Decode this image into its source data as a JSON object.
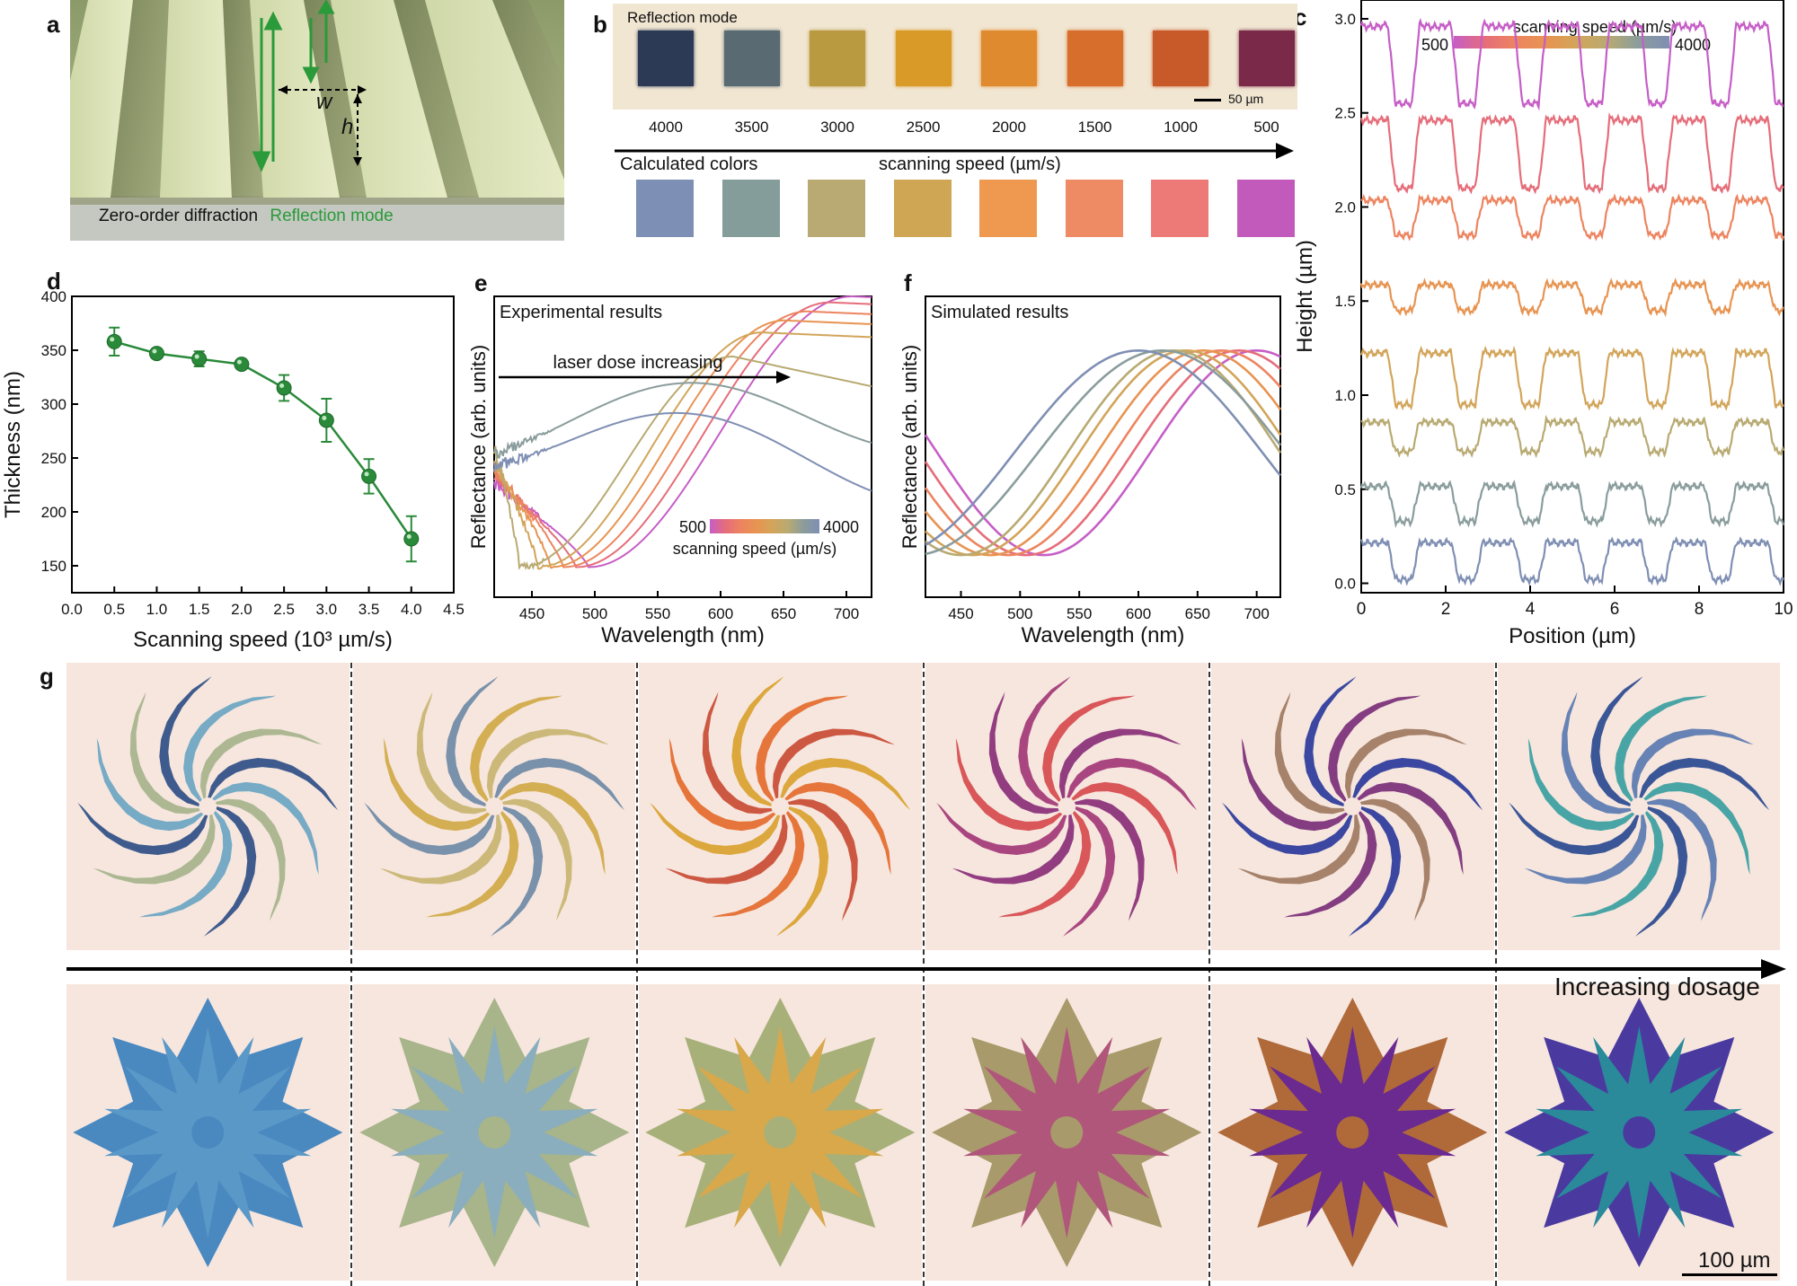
{
  "panels": {
    "a": "a",
    "b": "b",
    "c": "c",
    "d": "d",
    "e": "e",
    "f": "f",
    "g": "g"
  },
  "panel_a": {
    "w_label": "w",
    "h_label": "h",
    "caption_black": "Zero-order diffraction",
    "caption_green": "Reflection mode"
  },
  "panel_b": {
    "mode_label": "Reflection mode",
    "scale_bar": "50 µm",
    "speeds": [
      "4000",
      "3500",
      "3000",
      "2500",
      "2000",
      "1500",
      "1000",
      "500"
    ],
    "measured_colors": [
      "#2c3a55",
      "#5a6a72",
      "#b99a40",
      "#d99a28",
      "#e08a30",
      "#d86e2c",
      "#c85a2a",
      "#7a2a48"
    ],
    "calc_label": "Calculated colors",
    "axis_label": "scanning speed (µm/s)",
    "calculated_colors": [
      "#7e8fb5",
      "#849c9a",
      "#b8aa72",
      "#cfa654",
      "#ee9850",
      "#ee8a64",
      "#ee7a78",
      "#c15aba"
    ]
  },
  "chart_data": [
    {
      "id": "c",
      "type": "line",
      "xlabel": "Position (µm)",
      "ylabel": "Height (µm)",
      "xlim": [
        0,
        10
      ],
      "ylim": [
        -0.05,
        3.1
      ],
      "xticks": [
        "0",
        "2",
        "4",
        "6",
        "8",
        "10"
      ],
      "yticks": [
        "0.0",
        "0.5",
        "1.0",
        "1.5",
        "2.0",
        "2.5",
        "3.0"
      ],
      "colorbar": {
        "title": "scanning speed (µm/s)",
        "min_label": "500",
        "max_label": "4000"
      },
      "period": 1.5,
      "series": [
        {
          "color": "#c65ec6",
          "base": 2.55,
          "top": 2.97
        },
        {
          "color": "#e56d7a",
          "base": 2.1,
          "top": 2.47
        },
        {
          "color": "#ed8460",
          "base": 1.85,
          "top": 2.04
        },
        {
          "color": "#e79452",
          "base": 1.45,
          "top": 1.59
        },
        {
          "color": "#d2a55a",
          "base": 0.95,
          "top": 1.23
        },
        {
          "color": "#b8aa72",
          "base": 0.7,
          "top": 0.86
        },
        {
          "color": "#8a9c9c",
          "base": 0.33,
          "top": 0.52
        },
        {
          "color": "#7f8fb3",
          "base": 0.02,
          "top": 0.22
        }
      ]
    },
    {
      "id": "d",
      "type": "scatter",
      "xlabel": "Scanning speed (10³ µm/s)",
      "ylabel": "Thickness (nm)",
      "xlim": [
        0,
        4.5
      ],
      "ylim": [
        125,
        400
      ],
      "xticks": [
        "0.0",
        "0.5",
        "1.0",
        "1.5",
        "2.0",
        "2.5",
        "3.0",
        "3.5",
        "4.0",
        "4.5"
      ],
      "yticks": [
        "150",
        "200",
        "250",
        "300",
        "350",
        "400"
      ],
      "x": [
        0.5,
        1.0,
        1.5,
        2.0,
        2.5,
        3.0,
        3.5,
        4.0
      ],
      "y": [
        358,
        347,
        342,
        337,
        315,
        285,
        233,
        175
      ],
      "err": [
        13,
        3,
        7,
        4,
        12,
        20,
        16,
        21
      ],
      "color": "#2a8a3a"
    },
    {
      "id": "e",
      "type": "line",
      "title": "Experimental results",
      "annotation": "laser dose increasing",
      "xlabel": "Wavelength (nm)",
      "ylabel": "Reflectance (arb. units)",
      "xlim": [
        420,
        720
      ],
      "xticks": [
        "450",
        "500",
        "550",
        "600",
        "650",
        "700"
      ],
      "colorbar": {
        "title": "scanning speed (µm/s)",
        "min_label": "500",
        "max_label": "4000"
      },
      "series": [
        {
          "color": "#c65ec6",
          "min": 495,
          "startY": 0.38,
          "endY": 1.0
        },
        {
          "color": "#e56d7a",
          "min": 485,
          "startY": 0.4,
          "endY": 0.98
        },
        {
          "color": "#ed8460",
          "min": 475,
          "startY": 0.42,
          "endY": 0.95
        },
        {
          "color": "#e79452",
          "min": 465,
          "startY": 0.44,
          "endY": 0.92
        },
        {
          "color": "#d2a55a",
          "min": 455,
          "startY": 0.46,
          "endY": 0.88
        },
        {
          "color": "#b8aa72",
          "min": 440,
          "startY": 0.5,
          "endY": 0.8
        },
        {
          "color": "#8a9c9c",
          "min": 420,
          "startY": 0.58,
          "endY": 0.6
        },
        {
          "color": "#7f8fb3",
          "min": 420,
          "startY": 0.54,
          "endY": 0.4
        }
      ]
    },
    {
      "id": "f",
      "type": "line",
      "title": "Simulated results",
      "xlabel": "Wavelength (nm)",
      "ylabel": "Reflectance (arb. units)",
      "xlim": [
        420,
        720
      ],
      "xticks": [
        "450",
        "500",
        "550",
        "600",
        "650",
        "700"
      ],
      "series": [
        {
          "color": "#c65ec6",
          "min": 520
        },
        {
          "color": "#e56d7a",
          "min": 505
        },
        {
          "color": "#ed8460",
          "min": 490
        },
        {
          "color": "#e79452",
          "min": 475
        },
        {
          "color": "#d2a55a",
          "min": 460
        },
        {
          "color": "#b8aa72",
          "min": 450
        },
        {
          "color": "#8a9c9c",
          "min": 410
        },
        {
          "color": "#7f8fb3",
          "min": 390
        }
      ]
    }
  ],
  "panel_g": {
    "arrow_label": "Increasing dosage",
    "scale_bar": "100 µm",
    "swirl_palettes": [
      [
        "#2f4f86",
        "#6aa5c2",
        "#a6b48c"
      ],
      [
        "#6e8aa6",
        "#d0a945",
        "#c8b570"
      ],
      [
        "#d9a22e",
        "#e46b2c",
        "#c94c34"
      ],
      [
        "#a33876",
        "#d64a4d",
        "#8a2f78"
      ],
      [
        "#2a3a9a",
        "#7a2f78",
        "#a07a60"
      ],
      [
        "#2a4a90",
        "#3aa0a0",
        "#5a7ab0"
      ]
    ],
    "flower_palettes": [
      [
        "#5a98c8",
        "#4a88c0"
      ],
      [
        "#8aaebd",
        "#a8b48a"
      ],
      [
        "#d8a84a",
        "#a8b07a"
      ],
      [
        "#b0567a",
        "#a89a6a"
      ],
      [
        "#6a2a90",
        "#b06a3a"
      ],
      [
        "#2a8a9a",
        "#4a3aa0"
      ]
    ]
  }
}
